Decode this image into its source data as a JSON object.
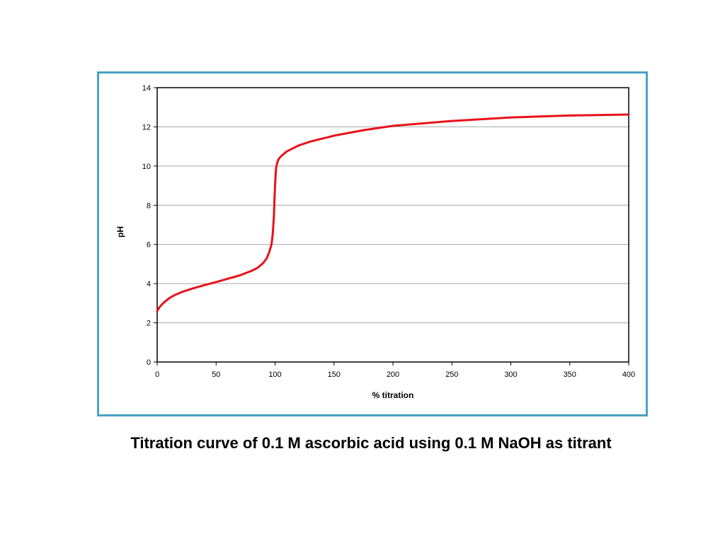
{
  "caption": "Titration curve of 0.1 M ascorbic acid using 0.1 M NaOH as titrant",
  "colors": {
    "frame": "#4aa3c6",
    "series": "#e8121a",
    "grid": "#a6a6a6"
  },
  "chart_data": {
    "type": "line",
    "title": "",
    "xlabel": "% titration",
    "ylabel": "pH",
    "xlim": [
      0,
      400
    ],
    "ylim": [
      0,
      14
    ],
    "xticks": [
      0,
      50,
      100,
      150,
      200,
      250,
      300,
      350,
      400
    ],
    "yticks": [
      0,
      2,
      4,
      6,
      8,
      10,
      12,
      14
    ],
    "grid": "horizontal",
    "legend": "none",
    "series": [
      {
        "x": [
          0,
          2,
          5,
          10,
          15,
          20,
          30,
          40,
          50,
          60,
          70,
          80,
          85,
          90,
          93,
          95,
          97,
          98,
          99,
          99.5,
          100,
          100.5,
          101,
          102,
          103,
          105,
          110,
          120,
          130,
          150,
          175,
          200,
          250,
          300,
          350,
          400
        ],
        "y": [
          2.6,
          2.8,
          3.0,
          3.25,
          3.42,
          3.55,
          3.75,
          3.92,
          4.08,
          4.25,
          4.42,
          4.65,
          4.8,
          5.05,
          5.3,
          5.6,
          6.0,
          6.5,
          7.4,
          8.3,
          9.0,
          9.6,
          9.95,
          10.2,
          10.35,
          10.5,
          10.75,
          11.05,
          11.25,
          11.55,
          11.83,
          12.05,
          12.3,
          12.48,
          12.58,
          12.63
        ]
      }
    ]
  }
}
